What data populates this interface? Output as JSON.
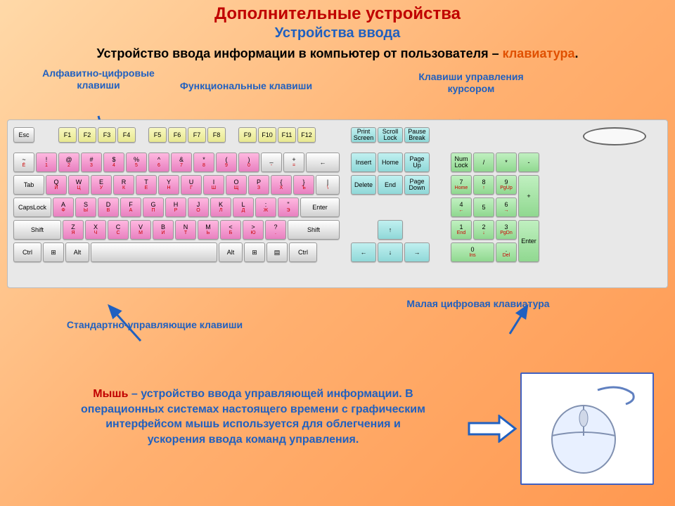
{
  "colors": {
    "bg_gradient": [
      "#ffd9a8",
      "#ffb070",
      "#ff9850"
    ],
    "title": "#c00000",
    "subtitle": "#2060c0",
    "label": "#2060c0",
    "highlight": "#e05000",
    "mouse_hl": "#c00000",
    "pink": "#e880c0",
    "yellow": "#e8e890",
    "cyan": "#90d8d8",
    "green": "#90d890",
    "grey": "#d0d0d0",
    "arrow": "#2060c0",
    "mouse_border": "#4060c0"
  },
  "title": "Дополнительные устройства",
  "subtitle": "Устройства ввода",
  "intro_pre": "Устройство ввода информации в компьютер от пользователя – ",
  "intro_hl": "клавиатура",
  "intro_post": ".",
  "labels": {
    "alnum": "Алфавитно-цифровые клавиши",
    "func": "Функциональные клавиши",
    "cursor": "Клавиши управления курсором",
    "control": "Стандартно-управляющие клавиши",
    "numpad": "Малая цифровая клавиатура"
  },
  "mouse": {
    "hl": "Мышь",
    "text": " – устройство ввода управляющей информации. В операционных системах настоящего времени с графическим интерфейсом мышь используется для облегчения и ускорения ввода команд управления."
  },
  "keyboard": {
    "esc": "Esc",
    "frow": [
      "F1",
      "F2",
      "F3",
      "F4",
      "F5",
      "F6",
      "F7",
      "F8",
      "F9",
      "F10",
      "F11",
      "F12"
    ],
    "num_row": [
      {
        "t": "~",
        "s": "Ё"
      },
      {
        "t": "!",
        "s": "1"
      },
      {
        "t": "@",
        "s": "2"
      },
      {
        "t": "#",
        "s": "3"
      },
      {
        "t": "$",
        "s": "4"
      },
      {
        "t": "%",
        "s": "5"
      },
      {
        "t": "^",
        "s": "6"
      },
      {
        "t": "&",
        "s": "7"
      },
      {
        "t": "*",
        "s": "8"
      },
      {
        "t": "(",
        "s": "9"
      },
      {
        "t": ")",
        "s": "0"
      },
      {
        "t": "_",
        "s": "-"
      },
      {
        "t": "+",
        "s": "="
      },
      {
        "t": "←",
        "s": ""
      }
    ],
    "qrow_pre": "Tab",
    "qrow": [
      {
        "t": "Q",
        "s": "Й"
      },
      {
        "t": "W",
        "s": "Ц"
      },
      {
        "t": "E",
        "s": "У"
      },
      {
        "t": "R",
        "s": "К"
      },
      {
        "t": "T",
        "s": "Е"
      },
      {
        "t": "Y",
        "s": "Н"
      },
      {
        "t": "U",
        "s": "Г"
      },
      {
        "t": "I",
        "s": "Ш"
      },
      {
        "t": "O",
        "s": "Щ"
      },
      {
        "t": "P",
        "s": "З"
      },
      {
        "t": "{",
        "s": "Х"
      },
      {
        "t": "}",
        "s": "Ъ"
      }
    ],
    "caps": "CapsLock",
    "arow": [
      {
        "t": "A",
        "s": "Ф"
      },
      {
        "t": "S",
        "s": "Ы"
      },
      {
        "t": "D",
        "s": "В"
      },
      {
        "t": "F",
        "s": "А"
      },
      {
        "t": "G",
        "s": "П"
      },
      {
        "t": "H",
        "s": "Р"
      },
      {
        "t": "J",
        "s": "О"
      },
      {
        "t": "K",
        "s": "Л"
      },
      {
        "t": "L",
        "s": "Д"
      },
      {
        "t": ":",
        "s": "Ж"
      },
      {
        "t": "\"",
        "s": "Э"
      }
    ],
    "enter": "Enter",
    "shift": "Shift",
    "zrow": [
      {
        "t": "Z",
        "s": "Я"
      },
      {
        "t": "X",
        "s": "Ч"
      },
      {
        "t": "C",
        "s": "С"
      },
      {
        "t": "V",
        "s": "М"
      },
      {
        "t": "B",
        "s": "И"
      },
      {
        "t": "N",
        "s": "Т"
      },
      {
        "t": "M",
        "s": "Ь"
      },
      {
        "t": "<",
        "s": "Б"
      },
      {
        "t": ">",
        "s": "Ю"
      },
      {
        "t": "?",
        "s": "."
      }
    ],
    "ctrl": "Ctrl",
    "alt": "Alt",
    "nav1": [
      "Print Screen",
      "Scroll Lock",
      "Pause Break"
    ],
    "nav2": [
      "Insert",
      "Home",
      "Page Up"
    ],
    "nav3": [
      "Delete",
      "End",
      "Page Down"
    ],
    "arrows": [
      "↑",
      "←",
      "↓",
      "→"
    ],
    "numlock": "Num Lock",
    "np_top": [
      "/",
      "*",
      "-"
    ],
    "np": [
      {
        "t": "7",
        "s": "Home"
      },
      {
        "t": "8",
        "s": "↑"
      },
      {
        "t": "9",
        "s": "PgUp"
      },
      {
        "t": "4",
        "s": "←"
      },
      {
        "t": "5",
        "s": ""
      },
      {
        "t": "6",
        "s": "→"
      },
      {
        "t": "1",
        "s": "End"
      },
      {
        "t": "2",
        "s": "↓"
      },
      {
        "t": "3",
        "s": "PgDn"
      }
    ],
    "np_plus": "+",
    "np_enter": "Enter",
    "np_ins": {
      "t": "0",
      "s": "Ins"
    },
    "np_del": {
      "t": ".",
      "s": "Del"
    }
  },
  "layout": {
    "key_w": 30,
    "key_h": 28,
    "frow_w": 26,
    "frow_h": 22,
    "nav_w": 36,
    "nav_h": 28,
    "np_w": 30,
    "np_h": 28
  }
}
